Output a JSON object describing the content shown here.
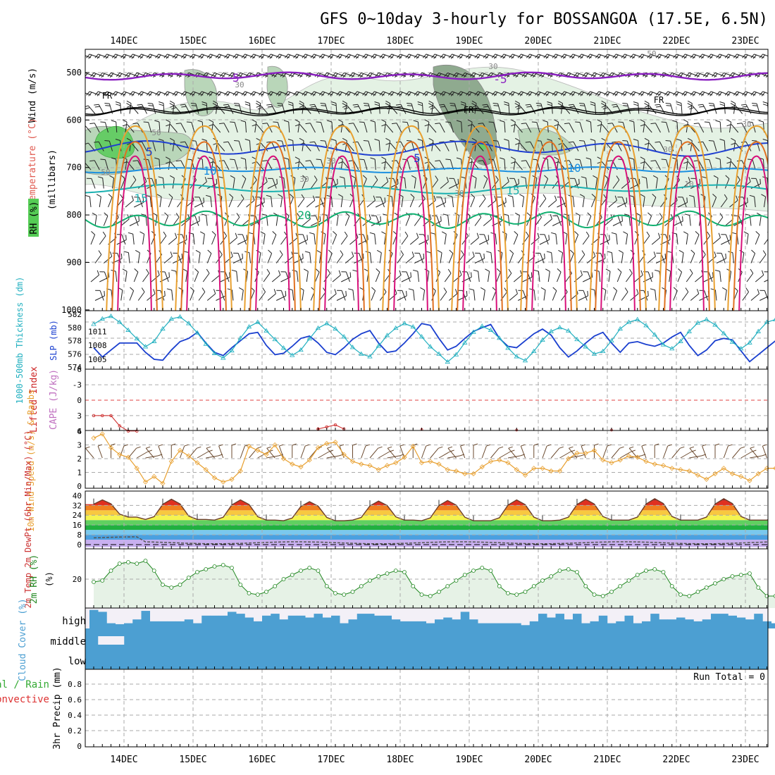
{
  "title": "GFS 0~10day 3-hourly for BOSSANGOA (17.5E, 6.5N)",
  "date_labels": [
    "14DEC",
    "15DEC",
    "16DEC",
    "17DEC",
    "18DEC",
    "19DEC",
    "20DEC",
    "21DEC",
    "22DEC",
    "23DEC"
  ],
  "colors": {
    "temp_purple": "#8a1fc0",
    "temp_blue": "#1f3fd0",
    "temp_lightblue": "#1a8fe0",
    "temp_teal": "#1ab0b0",
    "temp_green": "#10b070",
    "temp_orange": "#e8a030",
    "temp_darkorange": "#e07020",
    "temp_magenta": "#d8107a",
    "rh_light": "#e4f2e4",
    "rh_mid": "#b9d6b9",
    "rh_dark": "#8faa8f",
    "rh_green": "#66cc66",
    "slp": "#1a3fcf",
    "thick": "#22b0c0",
    "li": "#cc2222",
    "wind10": "#e8a030",
    "cloud": "#4c9fd2",
    "rh2m_line": "#228822",
    "rh2m_fill": "#e6f2e6"
  },
  "chart_data": [
    {
      "panel": "upper-air",
      "type": "contour",
      "ylabel_parts": [
        "Wind (m/s)",
        "Temperature (°C)",
        "RH (%)",
        "(millibars)"
      ],
      "yticks": [
        "500",
        "600",
        "700",
        "800",
        "900",
        "1000"
      ],
      "ylim": [
        450,
        1000
      ],
      "contour_labels": {
        "temperature": [
          "-5",
          "-5",
          "FR",
          "FR",
          "FR",
          "5",
          "5",
          "10",
          "10",
          "15",
          "15",
          "20"
        ],
        "rh": [
          "50",
          "50",
          "30",
          "30",
          "30",
          "30",
          "30",
          "10",
          "50",
          "30",
          "30"
        ]
      }
    },
    {
      "panel": "slp-thickness",
      "type": "line",
      "left_ylabel": "1000-500mb Thickness (dm)",
      "right_ylabel": "SLP (mb)",
      "left_ticks": [
        "582",
        "580",
        "578",
        "576",
        "574"
      ],
      "right_ticks": [
        "1011",
        "1008",
        "1005"
      ],
      "x_hours_step": 3,
      "series": [
        {
          "name": "SLP (mb)",
          "values": [
            1007.5,
            1005.5,
            1007,
            1008.5,
            1008.5,
            1008.5,
            1006.5,
            1005,
            1004.8,
            1007,
            1008.8,
            1009.5,
            1010.8,
            1008.5,
            1006.5,
            1005.8,
            1007.5,
            1009,
            1010.5,
            1010.8,
            1008,
            1006,
            1006.3,
            1007.8,
            1009.5,
            1010,
            1008.5,
            1006.5,
            1006,
            1007.5,
            1009.3,
            1010.5,
            1011.2,
            1008.5,
            1006.5,
            1006.8,
            1008.5,
            1010.5,
            1012.7,
            1012.3,
            1009.5,
            1007,
            1007.8,
            1009.5,
            1011,
            1011.8,
            1012.5,
            1009.5,
            1007.8,
            1007.5,
            1009,
            1010.5,
            1011.5,
            1010.2,
            1007.5,
            1005.5,
            1006.8,
            1008.5,
            1010,
            1010.8,
            1008.5,
            1006.5,
            1008.5,
            1008.8,
            1008.2,
            1007.8,
            1008.5,
            1009.8,
            1010.8,
            1008,
            1005.8,
            1007,
            1009,
            1009.5,
            1009.2,
            1006.8,
            1004.5,
            1006,
            1007.5,
            1009,
            1010.5,
            1008.5,
            1007.2,
            1008.5,
            1010.5
          ]
        },
        {
          "name": "1000-500mb Thickness (dm)",
          "values": [
            580.5,
            581.3,
            581.7,
            580.8,
            579.6,
            578.3,
            577.1,
            577.9,
            579.8,
            581.3,
            581.6,
            580.6,
            579.2,
            577.5,
            576.1,
            575.4,
            576.5,
            578.4,
            580.1,
            580.8,
            579.5,
            578.2,
            576.9,
            575.8,
            576.6,
            578.3,
            579.9,
            580.6,
            579.8,
            578.6,
            577.0,
            576.0,
            575.6,
            577.2,
            578.8,
            579.9,
            580.6,
            580.1,
            578.6,
            577.1,
            576.0,
            574.8,
            575.9,
            577.7,
            579.3,
            580.2,
            579.6,
            578.4,
            576.9,
            575.6,
            575.0,
            576.4,
            578.1,
            579.4,
            580.0,
            579.5,
            578.2,
            577.1,
            576.0,
            576.4,
            578.0,
            579.8,
            580.8,
            581.2,
            580.3,
            578.9,
            577.4,
            576.8,
            577.9,
            579.4,
            580.7,
            581.2,
            580.4,
            579.1,
            577.8,
            576.8,
            577.7,
            579.4,
            580.8,
            581.2,
            580.4,
            579.3,
            578.1,
            576.9,
            576.0
          ]
        }
      ]
    },
    {
      "panel": "lifted-index-cape",
      "type": "line",
      "ylabel": "Lifted Index",
      "ylabel2": "CAPE (J/kg)",
      "yticks": [
        "-6",
        "-3",
        "0",
        "3",
        "6"
      ],
      "ylim": [
        -6,
        6
      ],
      "series": [
        {
          "name": "Lifted Index",
          "points": [
            [
              0,
              3
            ],
            [
              1,
              3
            ],
            [
              2,
              3
            ],
            [
              3,
              5
            ],
            [
              4,
              6
            ],
            [
              5,
              6
            ]
          ]
        },
        {
          "name": "Lifted Index",
          "points": [
            [
              26,
              5.6
            ],
            [
              27,
              5.2
            ],
            [
              28,
              4.8
            ],
            [
              29,
              5.6
            ]
          ]
        }
      ]
    },
    {
      "panel": "wind10m",
      "type": "line",
      "ylabel": "10m Wind Speed (m/s) & Barbs",
      "yticks": [
        "0",
        "1",
        "2",
        "3",
        "4"
      ],
      "ylim": [
        0,
        4
      ],
      "values": [
        3.5,
        3.8,
        2.8,
        2.3,
        2.1,
        1.3,
        0.3,
        0.7,
        0.2,
        1.8,
        2.6,
        2.2,
        1.7,
        1.2,
        0.6,
        0.3,
        0.5,
        1.1,
        2.9,
        2.6,
        2.3,
        3.0,
        2.0,
        1.6,
        1.4,
        1.9,
        2.8,
        3.1,
        3.2,
        2.3,
        1.8,
        1.6,
        1.5,
        1.2,
        1.5,
        1.7,
        2.1,
        2.9,
        1.7,
        1.8,
        1.6,
        1.2,
        1.1,
        0.9,
        0.9,
        1.4,
        1.8,
        1.9,
        1.7,
        1.2,
        0.8,
        1.3,
        1.3,
        1.1,
        1.1,
        2.0,
        2.4,
        2.4,
        2.6,
        1.9,
        1.7,
        1.9,
        2.2,
        2.1,
        1.8,
        1.6,
        1.5,
        1.3,
        1.2,
        1.1,
        0.8,
        0.5,
        0.9,
        1.3,
        0.9,
        0.7,
        0.4,
        0.9,
        1.3,
        1.3,
        1.6,
        1.8,
        1.7,
        1.1,
        0.2,
        1.3,
        1.5,
        0.5
      ]
    },
    {
      "panel": "temperature",
      "type": "area",
      "ylabel": "2m Temp 2m DewPt (6hr Min/Max) (°C)",
      "yticks": [
        "40",
        "32",
        "24",
        "16",
        "8",
        "0"
      ],
      "ylim": [
        -2,
        40
      ],
      "daily_max": [
        36.5,
        37.0,
        36.5,
        35.0,
        35.5,
        36.0,
        36.5,
        37.0,
        37.5
      ],
      "daily_min": [
        22.5,
        20.5,
        20.0,
        19.5,
        20.0,
        19.5,
        19.5,
        20.0,
        20.0
      ],
      "dewpoint_value": 1.5
    },
    {
      "panel": "rh2m",
      "type": "area",
      "ylabel": "2m RH (%)",
      "yticks": [
        "20"
      ],
      "ylim": [
        0,
        40
      ],
      "values": [
        18,
        19,
        26,
        31,
        32,
        31,
        33,
        26,
        16,
        14,
        16,
        21,
        25,
        27,
        29,
        30,
        28,
        16,
        10,
        9,
        11,
        15,
        20,
        23,
        26,
        28,
        26,
        15,
        10,
        9,
        11,
        15,
        19,
        22,
        24,
        26,
        25,
        15,
        9,
        8,
        11,
        15,
        19,
        23,
        26,
        28,
        26,
        15,
        10,
        9,
        11,
        15,
        19,
        22,
        26,
        27,
        25,
        15,
        9,
        8,
        11,
        15,
        19,
        23,
        26,
        27,
        25,
        15,
        9,
        8,
        11,
        14,
        17,
        20,
        22,
        23,
        24,
        14,
        8,
        8,
        11,
        15,
        17,
        17,
        18,
        19
      ]
    },
    {
      "panel": "cloud",
      "type": "bar",
      "ylabel": "Cloud Cover (%)",
      "levels": [
        "high",
        "middle",
        "low"
      ],
      "high": [
        90,
        80,
        20,
        15,
        20,
        40,
        85,
        30,
        30,
        30,
        30,
        40,
        20,
        60,
        60,
        60,
        80,
        70,
        50,
        30,
        60,
        70,
        40,
        60,
        60,
        50,
        70,
        50,
        60,
        20,
        40,
        70,
        70,
        60,
        60,
        40,
        30,
        30,
        30,
        20,
        40,
        50,
        40,
        80,
        40,
        20,
        20,
        20,
        20,
        20,
        10,
        30,
        70,
        50,
        70,
        40,
        70,
        20,
        30,
        60,
        20,
        30,
        60,
        20,
        30,
        70,
        40,
        40,
        50,
        40,
        30,
        40,
        70,
        70,
        60,
        50,
        40,
        70,
        30,
        20,
        30,
        50,
        20,
        40,
        50,
        70
      ],
      "middle_gaps": [
        1,
        2,
        3
      ],
      "low_note": "full"
    },
    {
      "panel": "precip",
      "type": "bar",
      "ylabel": "3hr Precip (mm)",
      "legend_left": [
        "Total / Rain",
        "Convective"
      ],
      "yticks": [
        "0.8",
        "0.6",
        "0.4",
        "0.2",
        "0"
      ],
      "ylim": [
        0,
        0.9
      ],
      "values": [],
      "run_total": "Run Total = 0"
    }
  ]
}
